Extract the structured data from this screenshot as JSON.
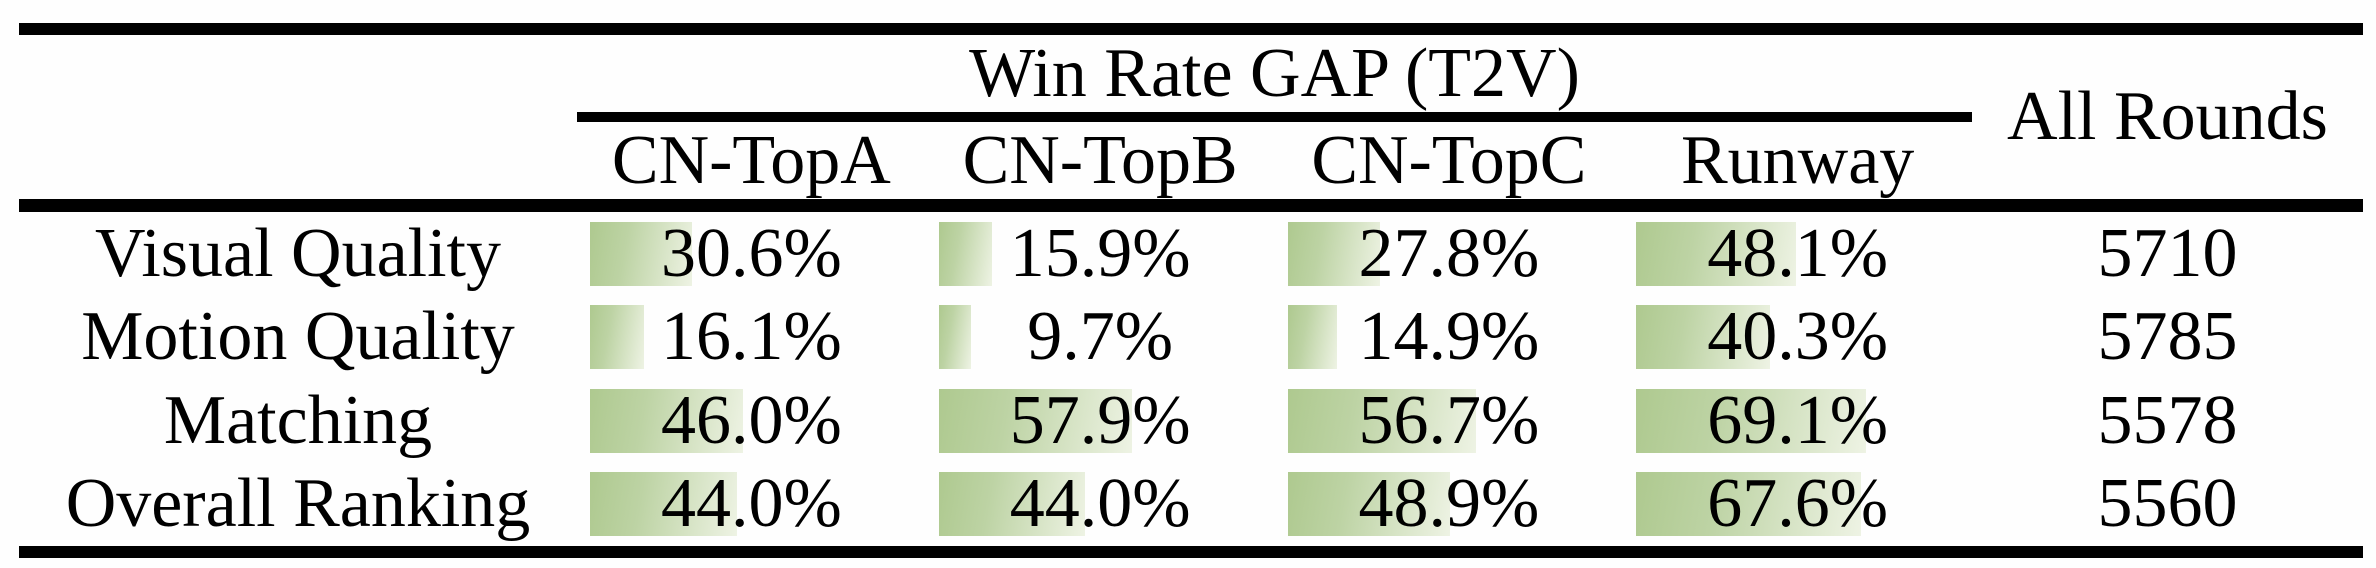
{
  "table": {
    "group_header": "Win Rate GAP (T2V)",
    "all_rounds_header": "All Rounds",
    "columns": [
      "CN-TopA",
      "CN-TopB",
      "CN-TopC",
      "Runway"
    ],
    "rows": [
      {
        "label": "Visual Quality",
        "values": [
          30.6,
          15.9,
          27.8,
          48.1
        ],
        "display": [
          "30.6%",
          "15.9%",
          "27.8%",
          "48.1%"
        ],
        "all_rounds": "5710"
      },
      {
        "label": "Motion Quality",
        "values": [
          16.1,
          9.7,
          14.9,
          40.3
        ],
        "display": [
          "16.1%",
          "9.7%",
          "14.9%",
          "40.3%"
        ],
        "all_rounds": "5785"
      },
      {
        "label": "Matching",
        "values": [
          46.0,
          57.9,
          56.7,
          69.1
        ],
        "display": [
          "46.0%",
          "57.9%",
          "56.7%",
          "69.1%"
        ],
        "all_rounds": "5578"
      },
      {
        "label": "Overall Ranking",
        "values": [
          44.0,
          44.0,
          48.9,
          67.6
        ],
        "display": [
          "44.0%",
          "44.0%",
          "48.9%",
          "67.6%"
        ],
        "all_rounds": "5560"
      }
    ],
    "bar_color_start": "#aec98f",
    "bar_color_end": "#eef3e4",
    "rule_color": "#000000"
  },
  "chart_data": {
    "type": "table",
    "title": "Win Rate GAP (T2V)",
    "categories": [
      "Visual Quality",
      "Motion Quality",
      "Matching",
      "Overall Ranking"
    ],
    "series": [
      {
        "name": "CN-TopA",
        "values": [
          30.6,
          16.1,
          46.0,
          44.0
        ]
      },
      {
        "name": "CN-TopB",
        "values": [
          15.9,
          9.7,
          57.9,
          44.0
        ]
      },
      {
        "name": "CN-TopC",
        "values": [
          27.8,
          14.9,
          56.7,
          48.9
        ]
      },
      {
        "name": "Runway",
        "values": [
          48.1,
          40.3,
          69.1,
          67.6
        ]
      },
      {
        "name": "All Rounds",
        "values": [
          5710,
          5785,
          5578,
          5560
        ]
      }
    ],
    "unit": "percent (win rate gap), All Rounds in counts",
    "layout": "data bars embedded in table cells, bar width proportional to percent"
  }
}
